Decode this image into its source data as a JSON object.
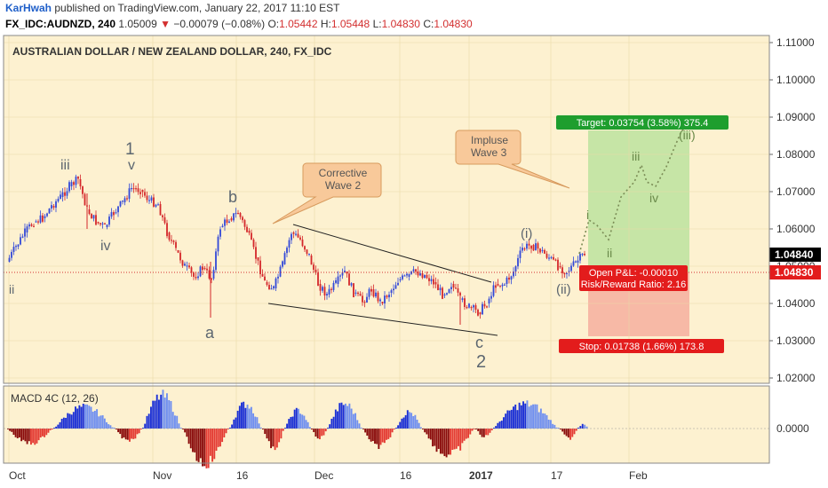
{
  "header": {
    "author": "KarHwah",
    "published": "published on TradingView.com, January 22, 2017 11:10 EST",
    "symbol": "FX_IDC:AUDNZD, 240",
    "price": "1.05009",
    "change_arrow": "▼",
    "change": "−0.00079 (−0.08%)",
    "o_label": "O:",
    "o_val": "1.05442",
    "h_label": "H:",
    "h_val": "1.05448",
    "l_label": "L:",
    "l_val": "1.04830",
    "c_label": "C:",
    "c_val": "1.04830"
  },
  "chart_title": "AUSTRALIAN DOLLAR / NEW ZEALAND DOLLAR, 240, FX_IDC",
  "y_ticks": [
    "1.11000",
    "1.10000",
    "1.09000",
    "1.08000",
    "1.07000",
    "1.06000",
    "1.05000",
    "1.04000",
    "1.03000",
    "1.02000"
  ],
  "price_tags": {
    "upper": "1.04840",
    "lower": "1.04830"
  },
  "x_ticks": [
    "Oct",
    "Nov",
    "16",
    "Dec",
    "16",
    "2017",
    "17",
    "Feb"
  ],
  "callouts": {
    "corrective_1": "Corrective",
    "corrective_2": "Wave 2",
    "impulse_1": "Impluse",
    "impulse_2": "Wave 3"
  },
  "waves": {
    "w_ii_left": "ii",
    "w_iii": "iii",
    "w_1": "1",
    "w_v": "v",
    "w_iv": "iv",
    "w_a": "a",
    "w_b": "b",
    "w_c": "c",
    "w_2": "2",
    "w_i_paren": "(i)",
    "w_ii_paren": "(ii)",
    "w_i_small": "i",
    "w_ii_small": "ii",
    "w_iii_small": "iii",
    "w_iv_small": "iv",
    "w_iii_paren": "(iii)"
  },
  "position": {
    "target": "Target: 0.03754 (3.58%) 375.4",
    "stop": "Stop: 0.01738 (1.66%) 173.8",
    "open_pl": "Open P&L: -0.00010",
    "risk_reward": "Risk/Reward Ratio: 2.16"
  },
  "macd": {
    "label": "MACD 4C (12, 26)",
    "zero_label": "0.0000"
  },
  "colors": {
    "chart_bg": "#fdf1d0",
    "target_green": "#c6e5a6",
    "stop_red": "#f7b9a6",
    "target_tag": "#1e9e2e",
    "stop_tag": "#e31c1c",
    "candle_up": "#3148d8",
    "candle_down": "#d4262a",
    "macd_blue_dark": "#1a2fd6",
    "macd_blue_light": "#6f8ff0",
    "macd_red_dark": "#8a0b0b",
    "macd_red_light": "#e43b33"
  }
}
